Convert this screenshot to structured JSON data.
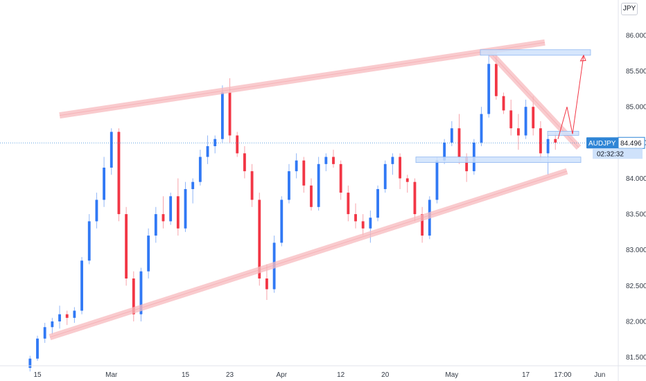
{
  "chart_data": {
    "type": "candlestick",
    "symbol": "AUDJPY",
    "currency": "JPY",
    "last_price": "84.496",
    "countdown": "02:32:32",
    "ylim": [
      81.38,
      86.3
    ],
    "y_ticks": [
      "86.000",
      "85.500",
      "85.000",
      "84.500",
      "84.000",
      "83.500",
      "83.000",
      "82.500",
      "82.000",
      "81.500"
    ],
    "y_tick_values": [
      86.0,
      85.5,
      85.0,
      84.5,
      84.0,
      83.5,
      83.0,
      82.5,
      82.0,
      81.5
    ],
    "x_ticks": [
      {
        "label": "15",
        "bar": 1
      },
      {
        "label": "Mar",
        "bar": 11
      },
      {
        "label": "15",
        "bar": 21
      },
      {
        "label": "23",
        "bar": 27
      },
      {
        "label": "Apr",
        "bar": 34
      },
      {
        "label": "12",
        "bar": 42
      },
      {
        "label": "20",
        "bar": 48
      },
      {
        "label": "May",
        "bar": 57
      },
      {
        "label": "17",
        "bar": 67
      },
      {
        "label": "17:00",
        "bar": 72
      },
      {
        "label": "Jun",
        "bar": 77
      }
    ],
    "bar_count": 80,
    "candles": [
      [
        81.35,
        81.52,
        81.3,
        81.48
      ],
      [
        81.48,
        81.8,
        81.45,
        81.76
      ],
      [
        81.76,
        81.98,
        81.7,
        81.92
      ],
      [
        81.92,
        82.05,
        81.82,
        82.0
      ],
      [
        82.0,
        82.22,
        81.9,
        82.1
      ],
      [
        82.1,
        82.15,
        81.95,
        82.05
      ],
      [
        82.05,
        82.2,
        81.98,
        82.15
      ],
      [
        82.15,
        82.9,
        82.1,
        82.85
      ],
      [
        82.85,
        83.5,
        82.8,
        83.4
      ],
      [
        83.4,
        83.8,
        83.3,
        83.7
      ],
      [
        83.7,
        84.3,
        83.6,
        84.15
      ],
      [
        84.15,
        84.7,
        84.05,
        84.65
      ],
      [
        84.65,
        84.7,
        83.4,
        83.5
      ],
      [
        83.5,
        83.6,
        82.5,
        82.6
      ],
      [
        82.6,
        82.7,
        82.0,
        82.1
      ],
      [
        82.1,
        82.75,
        82.0,
        82.7
      ],
      [
        82.7,
        83.3,
        82.6,
        83.2
      ],
      [
        83.2,
        83.6,
        83.1,
        83.5
      ],
      [
        83.5,
        83.75,
        83.3,
        83.4
      ],
      [
        83.4,
        83.8,
        83.35,
        83.75
      ],
      [
        83.75,
        84.0,
        83.2,
        83.3
      ],
      [
        83.3,
        83.95,
        83.25,
        83.85
      ],
      [
        83.85,
        84.0,
        83.65,
        83.95
      ],
      [
        83.95,
        84.4,
        83.9,
        84.3
      ],
      [
        84.3,
        84.6,
        84.2,
        84.45
      ],
      [
        84.45,
        84.6,
        84.35,
        84.55
      ],
      [
        84.55,
        85.3,
        84.5,
        85.2
      ],
      [
        85.2,
        85.4,
        84.5,
        84.6
      ],
      [
        84.6,
        84.65,
        84.3,
        84.35
      ],
      [
        84.35,
        84.45,
        84.0,
        84.1
      ],
      [
        84.1,
        84.2,
        83.6,
        83.7
      ],
      [
        83.7,
        83.8,
        82.5,
        82.6
      ],
      [
        82.6,
        82.8,
        82.3,
        82.45
      ],
      [
        82.45,
        83.2,
        82.4,
        83.1
      ],
      [
        83.1,
        83.75,
        83.05,
        83.7
      ],
      [
        83.7,
        84.2,
        83.65,
        84.1
      ],
      [
        84.1,
        84.35,
        84.0,
        84.25
      ],
      [
        84.25,
        84.3,
        83.8,
        83.9
      ],
      [
        83.9,
        84.0,
        83.55,
        83.6
      ],
      [
        83.6,
        84.3,
        83.55,
        84.2
      ],
      [
        84.2,
        84.35,
        84.1,
        84.3
      ],
      [
        84.3,
        84.4,
        84.15,
        84.2
      ],
      [
        84.2,
        84.25,
        83.7,
        83.8
      ],
      [
        83.8,
        83.9,
        83.4,
        83.5
      ],
      [
        83.5,
        83.65,
        83.3,
        83.4
      ],
      [
        83.4,
        83.5,
        83.2,
        83.3
      ],
      [
        83.3,
        83.55,
        83.1,
        83.45
      ],
      [
        83.45,
        83.9,
        83.4,
        83.85
      ],
      [
        83.85,
        84.25,
        83.8,
        84.2
      ],
      [
        84.2,
        84.35,
        84.05,
        84.3
      ],
      [
        84.3,
        84.35,
        83.85,
        84.0
      ],
      [
        84.0,
        84.05,
        83.8,
        83.95
      ],
      [
        83.95,
        84.0,
        83.4,
        83.5
      ],
      [
        83.5,
        83.6,
        83.1,
        83.2
      ],
      [
        83.2,
        83.75,
        83.15,
        83.7
      ],
      [
        83.7,
        84.3,
        83.65,
        84.25
      ],
      [
        84.25,
        84.55,
        84.2,
        84.5
      ],
      [
        84.5,
        84.8,
        84.45,
        84.7
      ],
      [
        84.7,
        84.9,
        84.2,
        84.3
      ],
      [
        84.3,
        84.35,
        83.95,
        84.1
      ],
      [
        84.1,
        84.55,
        84.05,
        84.5
      ],
      [
        84.5,
        85.0,
        84.45,
        84.9
      ],
      [
        84.9,
        85.75,
        84.85,
        85.6
      ],
      [
        85.6,
        85.8,
        85.1,
        85.15
      ],
      [
        85.15,
        85.2,
        84.9,
        84.95
      ],
      [
        84.95,
        85.1,
        84.6,
        84.7
      ],
      [
        84.7,
        84.9,
        84.4,
        84.6
      ],
      [
        84.6,
        85.1,
        84.55,
        85.0
      ],
      [
        85.0,
        85.15,
        84.6,
        84.7
      ],
      [
        84.7,
        84.8,
        84.25,
        84.35
      ],
      [
        84.35,
        84.6,
        84.05,
        84.55
      ],
      [
        84.55,
        84.65,
        84.4,
        84.5
      ]
    ],
    "colors": {
      "up": "#3179f5",
      "down": "#f23645",
      "wick_up": "#90b6f7",
      "wick_down": "#f7a2a9",
      "channel": "#f7b9be",
      "zone": "#cfe2fb",
      "zone_stroke": "#8fb8f2",
      "projection": "#f23645",
      "price_line": "#2f85d6",
      "axis_text": "#131722"
    }
  },
  "axis": {
    "currency_label": "JPY"
  },
  "price_badge": {
    "symbol_price": "AUDJPY  84.496",
    "countdown": "02:32:32"
  }
}
